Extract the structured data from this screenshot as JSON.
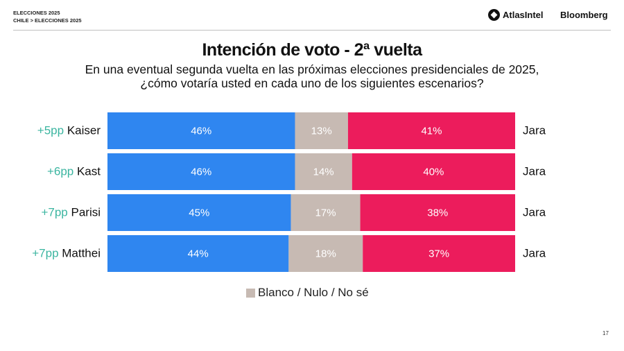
{
  "header": {
    "line1": "ELECCIONES 2025",
    "line2": "CHILE > ELECCIONES 2025",
    "brand_atlas": "AtlasIntel",
    "brand_bloomberg": "Bloomberg"
  },
  "page_number": "17",
  "chart_data": {
    "type": "bar",
    "orientation": "horizontal",
    "stacked": true,
    "title": "Intención de voto - 2ª vuelta",
    "subtitle_line1": "En una eventual segunda vuelta en las próximas elecciones presidenciales de 2025,",
    "subtitle_line2": "¿cómo votaría usted en cada uno de los siguientes escenarios?",
    "rows": [
      {
        "candidate": "Kaiser",
        "margin": "+5pp",
        "left": 46,
        "blank": 13,
        "right": 41,
        "opponent": "Jara"
      },
      {
        "candidate": "Kast",
        "margin": "+6pp",
        "left": 46,
        "blank": 14,
        "right": 40,
        "opponent": "Jara"
      },
      {
        "candidate": "Parisi",
        "margin": "+7pp",
        "left": 45,
        "blank": 17,
        "right": 38,
        "opponent": "Jara"
      },
      {
        "candidate": "Matthei",
        "margin": "+7pp",
        "left": 44,
        "blank": 18,
        "right": 37,
        "opponent": "Jara"
      }
    ],
    "unit": "%",
    "legend": [
      "Blanco / Nulo / No sé"
    ],
    "colors": {
      "left": "#2f86f0",
      "blank": "#c7bab3",
      "right": "#ec1c5c",
      "margin": "#3bb5a0"
    }
  }
}
